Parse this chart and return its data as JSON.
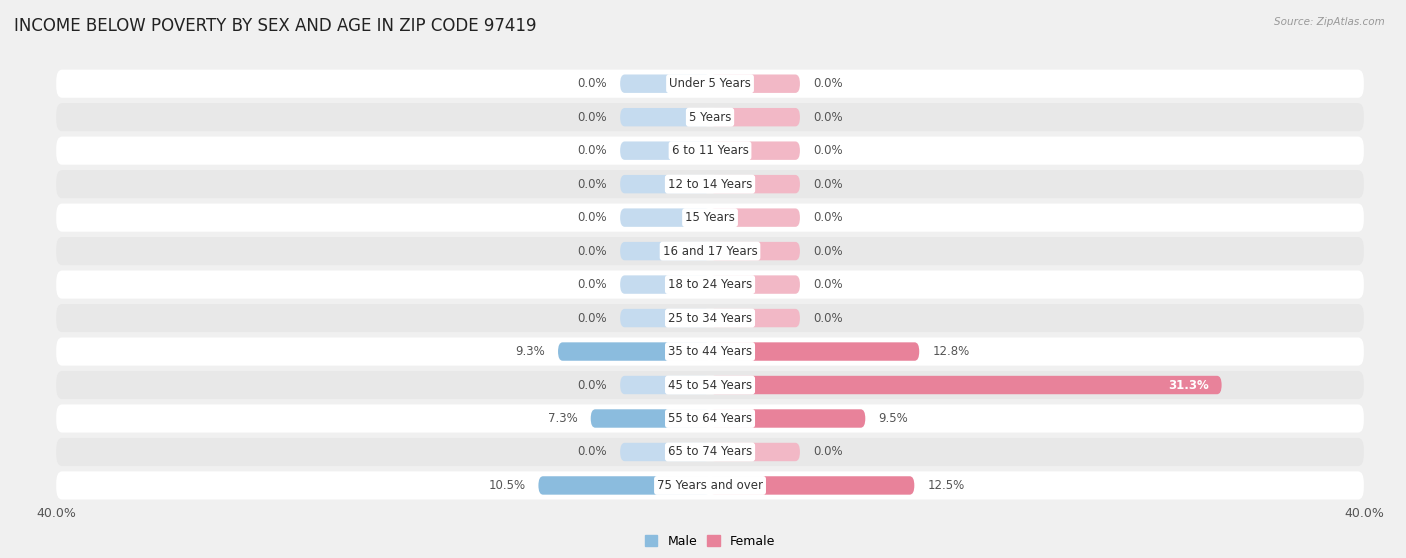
{
  "title": "INCOME BELOW POVERTY BY SEX AND AGE IN ZIP CODE 97419",
  "source": "Source: ZipAtlas.com",
  "categories": [
    "Under 5 Years",
    "5 Years",
    "6 to 11 Years",
    "12 to 14 Years",
    "15 Years",
    "16 and 17 Years",
    "18 to 24 Years",
    "25 to 34 Years",
    "35 to 44 Years",
    "45 to 54 Years",
    "55 to 64 Years",
    "65 to 74 Years",
    "75 Years and over"
  ],
  "male_values": [
    0.0,
    0.0,
    0.0,
    0.0,
    0.0,
    0.0,
    0.0,
    0.0,
    9.3,
    0.0,
    7.3,
    0.0,
    10.5
  ],
  "female_values": [
    0.0,
    0.0,
    0.0,
    0.0,
    0.0,
    0.0,
    0.0,
    0.0,
    12.8,
    31.3,
    9.5,
    0.0,
    12.5
  ],
  "male_color": "#8bbcde",
  "female_color": "#e8829a",
  "male_color_light": "#c5dbef",
  "female_color_light": "#f2b8c6",
  "xlim": 40.0,
  "min_bar_width": 5.5,
  "bar_height": 0.55,
  "bg_color": "#f0f0f0",
  "row_bg_white": "#ffffff",
  "row_bg_gray": "#e8e8e8",
  "title_fontsize": 12,
  "label_fontsize": 8.5,
  "axis_fontsize": 9,
  "legend_fontsize": 9,
  "value_fontsize": 8.5
}
